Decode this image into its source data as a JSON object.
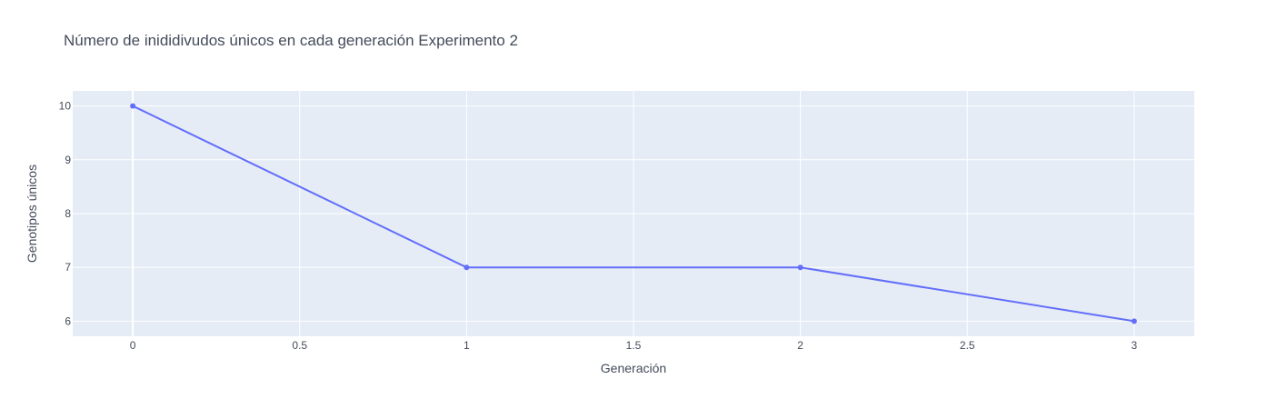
{
  "chart_data": {
    "type": "line",
    "title": "Número de inididivudos únicos en cada generación Experimento 2",
    "xlabel": "Generación",
    "ylabel": "Genotipos únicos",
    "x": [
      0,
      1,
      2,
      3
    ],
    "y": [
      10,
      7,
      7,
      6
    ],
    "xlim": [
      -0.18,
      3.18
    ],
    "ylim": [
      5.72,
      10.28
    ],
    "xticks": [
      0,
      0.5,
      1,
      1.5,
      2,
      2.5,
      3
    ],
    "xtick_labels": [
      "0",
      "0.5",
      "1",
      "1.5",
      "2",
      "2.5",
      "3"
    ],
    "yticks": [
      6,
      7,
      8,
      9,
      10
    ],
    "ytick_labels": [
      "6",
      "7",
      "8",
      "9",
      "10"
    ],
    "grid": true,
    "mode": "lines+markers",
    "colors": {
      "line": "#636efa",
      "plot_bg": "#e5ecf6",
      "grid": "#ffffff",
      "text": "#444b5a"
    }
  }
}
